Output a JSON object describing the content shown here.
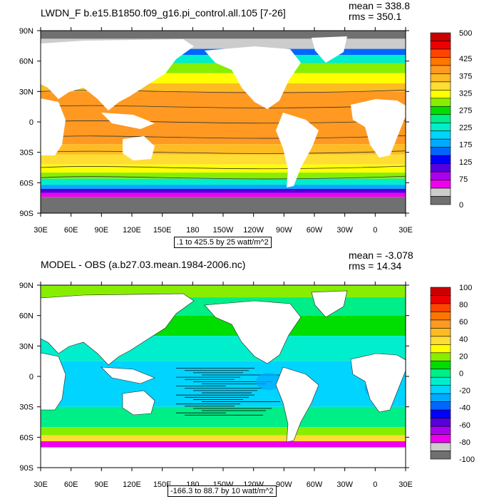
{
  "charts": [
    {
      "title": "LWDN_F b.e15.B1850.f09_g16.pi_control.all.105 [7-26]",
      "mean": "mean = 338.8",
      "rms": "rms = 350.1",
      "info": ".1 to 425.5 by 25 watt/m^2"
    },
    {
      "title": "MODEL - OBS (a.b27.03.mean.1984-2006.nc)",
      "mean": "mean = -3.078",
      "rms": "rms = 14.34",
      "info": "-166.3 to 88.7 by 10 watt/m^2"
    }
  ],
  "chart_data": [
    {
      "type": "heatmap",
      "title": "LWDN_F b.e15.B1850.f09_g16.pi_control.all.105 [7-26]",
      "x_tick_labels": [
        "30E",
        "60E",
        "90E",
        "120E",
        "150E",
        "180",
        "150W",
        "120W",
        "90W",
        "60W",
        "30W",
        "0",
        "30E"
      ],
      "y_tick_labels": [
        "90N",
        "60N",
        "30N",
        "0",
        "30S",
        "60S",
        "90S"
      ],
      "colorbar": {
        "labels": [
          "500",
          "425",
          "375",
          "325",
          "275",
          "225",
          "175",
          "125",
          "75",
          "0"
        ],
        "label_levels": [
          500,
          425,
          375,
          325,
          275,
          225,
          175,
          125,
          75,
          0
        ],
        "levels": [
          0,
          25,
          50,
          75,
          100,
          125,
          150,
          175,
          200,
          225,
          250,
          275,
          300,
          325,
          350,
          375,
          400,
          425,
          450,
          475,
          500
        ],
        "colors": [
          "#707070",
          "#cccccc",
          "#ee00ee",
          "#aa00ee",
          "#5500dd",
          "#0000ff",
          "#0066ff",
          "#00aaff",
          "#00d4ff",
          "#00eecc",
          "#00ee88",
          "#00dd00",
          "#88ee00",
          "#ffff00",
          "#ffdd33",
          "#ffbb22",
          "#ff9922",
          "#ff7700",
          "#ff4400",
          "#ee0000",
          "#cc0000"
        ]
      },
      "mean": 338.8,
      "rms": 350.1,
      "min": 0.1,
      "max": 425.5,
      "interval": 25,
      "units": "watt/m^2"
    },
    {
      "type": "heatmap",
      "title": "MODEL - OBS (a.b27.03.mean.1984-2006.nc)",
      "x_tick_labels": [
        "30E",
        "60E",
        "90E",
        "120E",
        "150E",
        "180",
        "150W",
        "120W",
        "90W",
        "60W",
        "30W",
        "0",
        "30E"
      ],
      "y_tick_labels": [
        "90N",
        "60N",
        "30N",
        "0",
        "30S",
        "60S",
        "90S"
      ],
      "colorbar": {
        "labels": [
          "100",
          "80",
          "60",
          "40",
          "20",
          "0",
          "-20",
          "-40",
          "-60",
          "-80",
          "-100"
        ],
        "label_levels": [
          100,
          80,
          60,
          40,
          20,
          0,
          -20,
          -40,
          -60,
          -80,
          -100
        ],
        "levels": [
          -100,
          -90,
          -80,
          -70,
          -60,
          -50,
          -40,
          -30,
          -20,
          -10,
          0,
          10,
          20,
          30,
          40,
          50,
          60,
          70,
          80,
          90,
          100
        ],
        "colors": [
          "#707070",
          "#cccccc",
          "#ee00ee",
          "#aa00ee",
          "#5500dd",
          "#0000ff",
          "#0066ff",
          "#00aaff",
          "#00d4ff",
          "#00eecc",
          "#00ee88",
          "#00dd00",
          "#88ee00",
          "#ffff00",
          "#ffdd33",
          "#ffbb22",
          "#ff9922",
          "#ff7700",
          "#ff4400",
          "#ee0000",
          "#cc0000"
        ]
      },
      "mean": -3.078,
      "rms": 14.34,
      "min": -166.3,
      "max": 88.7,
      "interval": 10,
      "units": "watt/m^2"
    }
  ]
}
